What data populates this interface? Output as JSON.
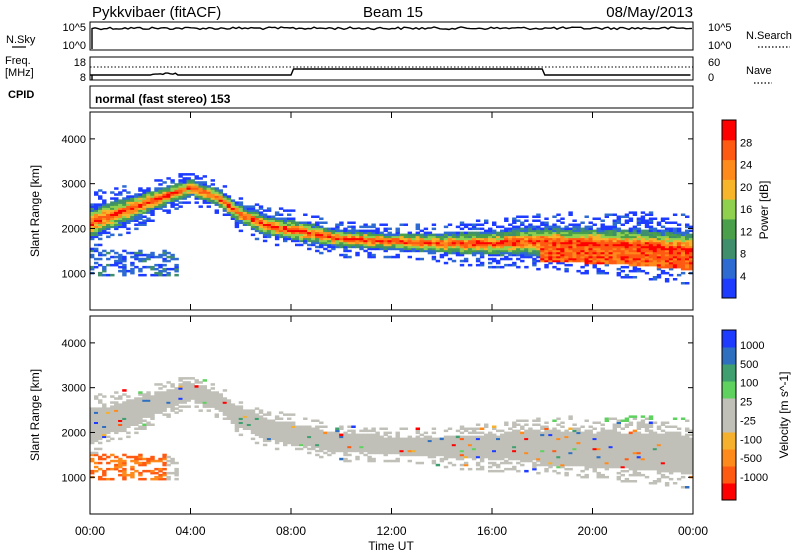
{
  "header": {
    "station": "Pykkvibaer (fitACF)",
    "beam": "Beam 15",
    "date": "08/May/2013"
  },
  "top_panels": {
    "nsky_label": "N.Sky",
    "nsky_ticks": [
      "10^5",
      "10^0"
    ],
    "nsearch_label": "N.Search",
    "nsearch_ticks": [
      "10^5",
      "10^0"
    ],
    "freq_label_1": "Freq.",
    "freq_label_2": "[MHz]",
    "freq_ticks": [
      "18",
      "8"
    ],
    "nave_label": "Nave",
    "nave_ticks": [
      "60",
      "0"
    ],
    "cpid_label": "CPID",
    "cpid_text": "normal (fast stereo) 153"
  },
  "colors": {
    "power": [
      "#1e3cff",
      "#2d6bd2",
      "#3f8f6c",
      "#4aa04a",
      "#8fd14f",
      "#f7b52b",
      "#ff8a1c",
      "#ff5a12",
      "#ff0000"
    ],
    "velocity": [
      "#ff0000",
      "#ff5a12",
      "#ff8a1c",
      "#f5b02e",
      "#c0c0b8",
      "#c0c0b8",
      "#5fd15f",
      "#3f9f6f",
      "#2f6fbf",
      "#1e3cff"
    ]
  },
  "chart_data": [
    {
      "type": "heatmap",
      "name": "power",
      "ylabel": "Slant Range [km]",
      "yticks": [
        "1000",
        "2000",
        "3000",
        "4000"
      ],
      "ylim": [
        180,
        4600
      ],
      "xlim": [
        0,
        24
      ],
      "colorbar_label": "Power [dB]",
      "colorbar_ticks": [
        "4",
        "8",
        "12",
        "16",
        "20",
        "24",
        "28"
      ],
      "colorbar_range": [
        0,
        32
      ],
      "band_center_km": [
        [
          0,
          2100
        ],
        [
          2,
          2500
        ],
        [
          4,
          2900
        ],
        [
          5,
          2700
        ],
        [
          6,
          2300
        ],
        [
          7,
          2050
        ],
        [
          8,
          1950
        ],
        [
          10,
          1750
        ],
        [
          12,
          1700
        ],
        [
          14,
          1650
        ],
        [
          16,
          1650
        ],
        [
          18,
          1700
        ],
        [
          20,
          1650
        ],
        [
          22,
          1600
        ],
        [
          24,
          1500
        ]
      ],
      "band_halfwidth_km": [
        [
          0,
          380
        ],
        [
          4,
          200
        ],
        [
          8,
          250
        ],
        [
          12,
          200
        ],
        [
          18,
          350
        ],
        [
          24,
          450
        ]
      ]
    },
    {
      "type": "heatmap",
      "name": "velocity",
      "xlabel": "Time UT",
      "xticks": [
        "00:00",
        "04:00",
        "08:00",
        "12:00",
        "16:00",
        "20:00",
        "00:00"
      ],
      "ylabel": "Slant Range [km]",
      "yticks": [
        "1000",
        "2000",
        "3000",
        "4000"
      ],
      "ylim": [
        180,
        4600
      ],
      "xlim": [
        0,
        24
      ],
      "colorbar_label": "Velocity [m s^-1]",
      "colorbar_ticks": [
        "1000",
        "500",
        "100",
        "25",
        "-25",
        "-100",
        "-500",
        "-1000"
      ],
      "colorbar_range": [
        -1000,
        1000
      ]
    }
  ]
}
